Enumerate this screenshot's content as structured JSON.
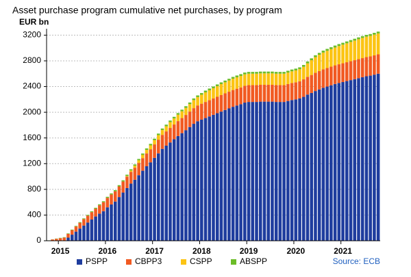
{
  "chart_data": {
    "type": "stacked_bar",
    "title": "Asset purchase program cumulative net purchases, by program",
    "y_label": "EUR bn",
    "source": "Source: ECB",
    "categories": [
      null,
      null,
      null,
      "2015",
      null,
      null,
      null,
      null,
      null,
      null,
      null,
      null,
      null,
      null,
      null,
      "2016",
      null,
      null,
      null,
      null,
      null,
      null,
      null,
      null,
      null,
      null,
      null,
      "2017",
      null,
      null,
      null,
      null,
      null,
      null,
      null,
      null,
      null,
      null,
      null,
      "2018",
      null,
      null,
      null,
      null,
      null,
      null,
      null,
      null,
      null,
      null,
      null,
      "2019",
      null,
      null,
      null,
      null,
      null,
      null,
      null,
      null,
      null,
      null,
      null,
      "2020",
      null,
      null,
      null,
      null,
      null,
      null,
      null,
      null,
      null,
      null,
      null,
      "2021",
      null,
      null,
      null,
      null,
      null,
      null,
      null,
      null,
      null
    ],
    "series": [
      {
        "name": "PSPP",
        "color": "#1f3d9e",
        "values": [
          0,
          0,
          0,
          0,
          0,
          48,
          95,
          142,
          190,
          237,
          283,
          330,
          377,
          422,
          460,
          520,
          565,
          610,
          680,
          750,
          820,
          890,
          950,
          1020,
          1090,
          1160,
          1220,
          1290,
          1360,
          1430,
          1480,
          1530,
          1580,
          1630,
          1675,
          1720,
          1770,
          1820,
          1860,
          1885,
          1910,
          1935,
          1960,
          1985,
          2010,
          2035,
          2060,
          2085,
          2105,
          2125,
          2150,
          2160,
          2160,
          2160,
          2165,
          2165,
          2165,
          2165,
          2160,
          2160,
          2160,
          2175,
          2190,
          2200,
          2215,
          2240,
          2275,
          2300,
          2330,
          2355,
          2380,
          2400,
          2420,
          2440,
          2455,
          2470,
          2485,
          2500,
          2515,
          2530,
          2545,
          2560,
          2570,
          2585,
          2600
        ]
      },
      {
        "name": "CBPP3",
        "color": "#f15a22",
        "values": [
          5,
          20,
          30,
          40,
          50,
          60,
          70,
          80,
          90,
          100,
          108,
          115,
          122,
          130,
          140,
          148,
          155,
          160,
          166,
          172,
          178,
          183,
          187,
          192,
          196,
          200,
          205,
          210,
          214,
          218,
          222,
          226,
          229,
          232,
          235,
          238,
          241,
          244,
          246,
          248,
          250,
          252,
          254,
          256,
          258,
          259,
          260,
          261,
          262,
          262,
          262,
          262,
          262,
          262,
          262,
          262,
          262,
          262,
          262,
          262,
          262,
          263,
          264,
          266,
          268,
          272,
          276,
          280,
          283,
          285,
          287,
          288,
          289,
          290,
          291,
          292,
          293,
          294,
          295,
          296,
          297,
          298,
          299,
          300,
          301
        ]
      },
      {
        "name": "CSPP",
        "color": "#fcc414",
        "values": [
          0,
          0,
          0,
          0,
          0,
          0,
          0,
          0,
          0,
          0,
          0,
          0,
          0,
          0,
          0,
          0,
          0,
          0,
          0,
          0,
          10,
          20,
          30,
          40,
          50,
          55,
          60,
          65,
          70,
          75,
          80,
          90,
          95,
          100,
          105,
          110,
          115,
          125,
          130,
          140,
          150,
          155,
          160,
          165,
          170,
          172,
          174,
          176,
          177,
          178,
          178,
          178,
          178,
          178,
          178,
          178,
          178,
          178,
          178,
          178,
          178,
          180,
          183,
          185,
          188,
          195,
          210,
          230,
          245,
          255,
          262,
          268,
          273,
          278,
          285,
          290,
          295,
          300,
          305,
          310,
          315,
          318,
          320,
          323,
          326
        ]
      },
      {
        "name": "ABSPP",
        "color": "#6cbd28",
        "values": [
          1,
          2,
          4,
          5,
          6,
          7,
          8,
          9,
          10,
          11,
          12,
          13,
          14,
          15,
          15,
          16,
          17,
          18,
          19,
          19,
          20,
          20,
          21,
          21,
          22,
          22,
          23,
          23,
          24,
          24,
          25,
          25,
          25,
          25,
          25,
          26,
          26,
          26,
          26,
          26,
          27,
          27,
          27,
          27,
          27,
          27,
          27,
          28,
          28,
          28,
          28,
          28,
          28,
          28,
          28,
          28,
          28,
          28,
          28,
          28,
          28,
          28,
          28,
          28,
          28,
          29,
          29,
          29,
          29,
          29,
          30,
          30,
          30,
          30,
          30,
          29,
          29,
          29,
          29,
          29,
          28,
          28,
          28,
          28,
          28
        ]
      }
    ],
    "ylim": [
      0,
      3300
    ],
    "yticks": [
      0,
      400,
      800,
      1200,
      1600,
      2000,
      2400,
      2800,
      3200
    ],
    "grid": true
  }
}
